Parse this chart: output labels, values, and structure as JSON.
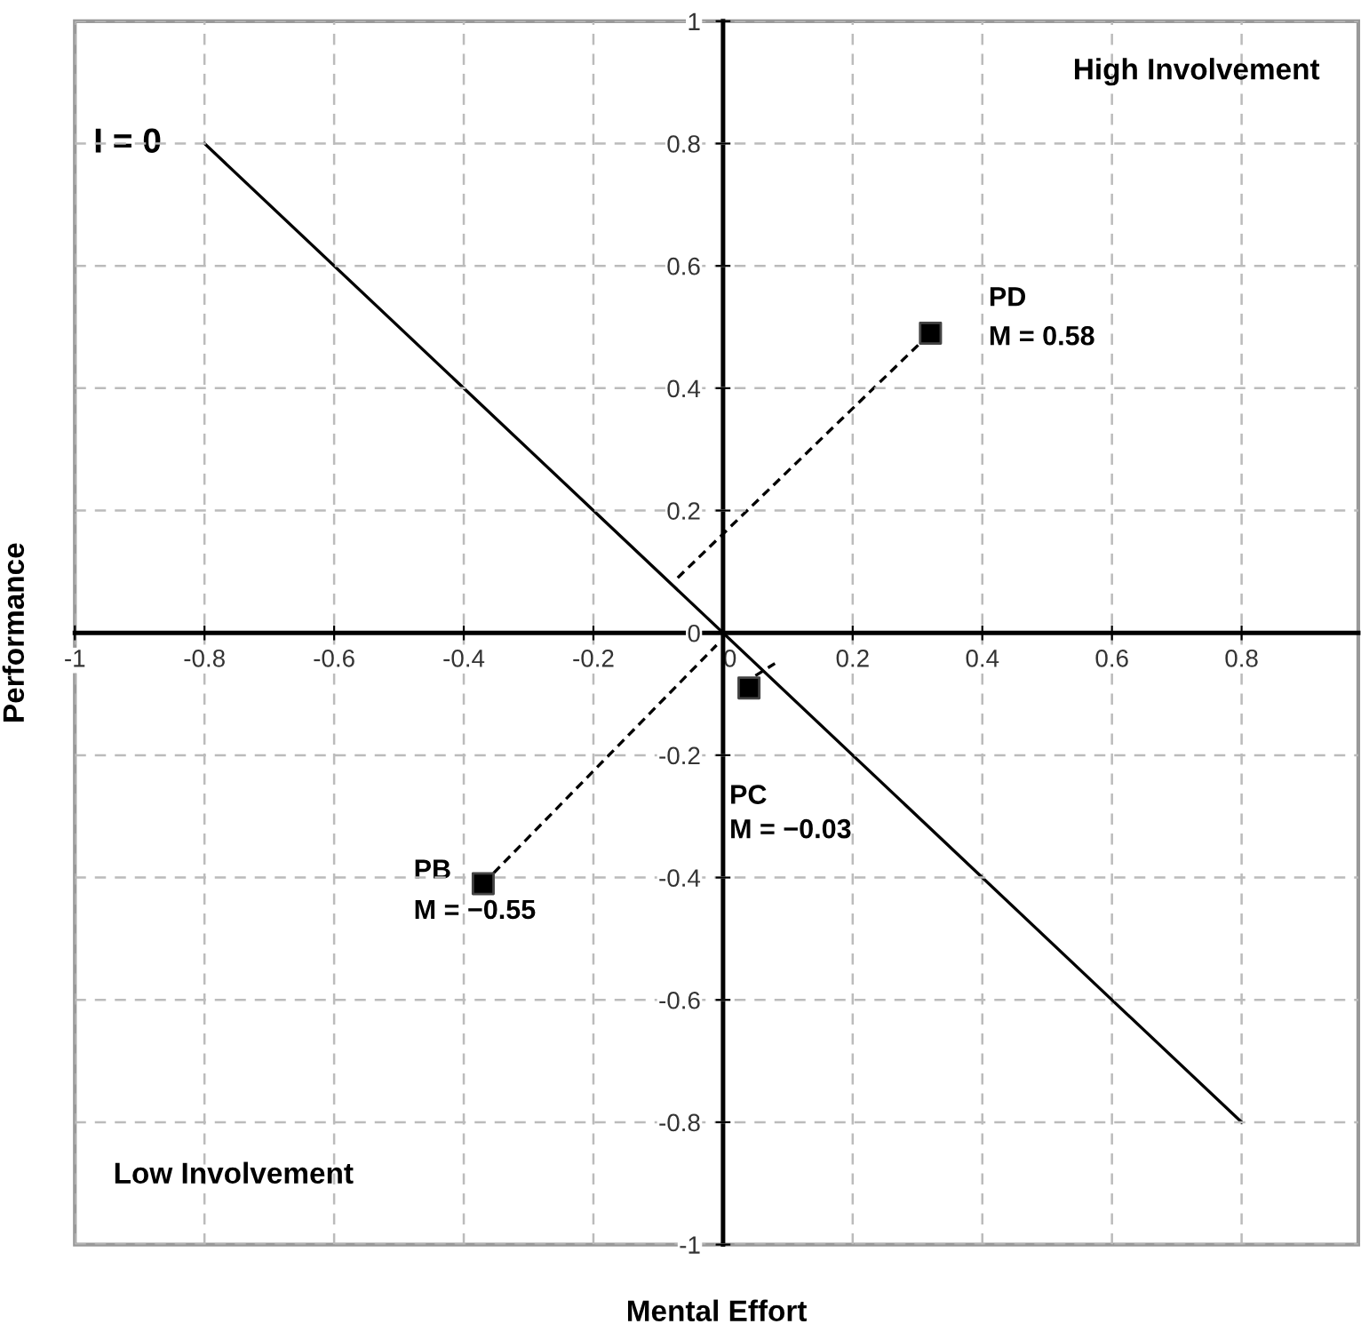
{
  "chart_data": {
    "type": "scatter",
    "xlabel": "Mental Effort",
    "ylabel": "Performance",
    "xlim": [
      -1,
      0.98
    ],
    "ylim": [
      -1,
      1
    ],
    "xticks": [
      -1,
      -0.8,
      -0.6,
      -0.4,
      -0.2,
      0,
      0.2,
      0.4,
      0.6,
      0.8
    ],
    "yticks": [
      -1,
      -0.8,
      -0.6,
      -0.4,
      -0.2,
      0,
      0.2,
      0.4,
      0.6,
      0.8,
      1
    ],
    "grid": true,
    "legend": false,
    "series": [
      {
        "type": "line",
        "color": "#000000",
        "line_style": "solid",
        "marker": "none",
        "x": [
          -0.8,
          0.8
        ],
        "values": [
          0.8,
          -0.8
        ]
      },
      {
        "type": "line",
        "color": "#000000",
        "line_style": "dashed",
        "marker": "none",
        "x": [
          -0.07,
          0.32
        ],
        "values": [
          0.09,
          0.49
        ]
      },
      {
        "type": "line",
        "color": "#000000",
        "line_style": "dashed",
        "marker": "none",
        "x": [
          -0.37,
          -0.01
        ],
        "values": [
          -0.41,
          -0.02
        ]
      },
      {
        "type": "line",
        "color": "#000000",
        "line_style": "dashed",
        "marker": "none",
        "x": [
          0.05,
          0.08
        ],
        "values": [
          -0.07,
          -0.05
        ]
      },
      {
        "color": "#000000",
        "marker": "square",
        "x": [
          0.32,
          0.04,
          -0.37
        ],
        "values": [
          0.49,
          -0.09,
          -0.41
        ]
      }
    ],
    "annotations": [
      {
        "text": "I = 0",
        "x": -0.8,
        "y": 0.8
      },
      "PD",
      "M = 0.58",
      "PC",
      "M = −0.03",
      "PB",
      "M = −0.55",
      "High Involvement",
      "Low Involvement"
    ]
  }
}
